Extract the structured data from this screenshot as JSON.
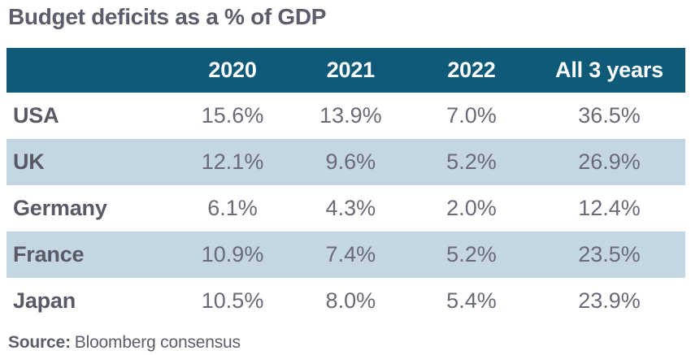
{
  "title": "Budget deficits as a % of GDP",
  "table": {
    "columns": [
      "",
      "2020",
      "2021",
      "2022",
      "All 3 years"
    ],
    "rows": [
      {
        "label": "USA",
        "values": [
          "15.6%",
          "13.9%",
          "7.0%",
          "36.5%"
        ]
      },
      {
        "label": "UK",
        "values": [
          "12.1%",
          "9.6%",
          "5.2%",
          "26.9%"
        ]
      },
      {
        "label": "Germany",
        "values": [
          "6.1%",
          "4.3%",
          "2.0%",
          "12.4%"
        ]
      },
      {
        "label": "France",
        "values": [
          "10.9%",
          "7.4%",
          "5.2%",
          "23.5%"
        ]
      },
      {
        "label": "Japan",
        "values": [
          "10.5%",
          "8.0%",
          "5.4%",
          "23.9%"
        ]
      }
    ]
  },
  "source": {
    "label": "Source:",
    "text": "Bloomberg consensus"
  },
  "colors": {
    "header_bg": "#0e5a78",
    "header_text": "#ffffff",
    "alt_row_bg": "#c5d6e3",
    "title_text": "#5b5d6a",
    "body_text": "#696b76",
    "row_label_text": "#585a66"
  },
  "chart_data": {
    "type": "table",
    "title": "Budget deficits as a % of GDP",
    "columns": [
      "2020",
      "2021",
      "2022",
      "All 3 years"
    ],
    "row_labels": [
      "USA",
      "UK",
      "Germany",
      "France",
      "Japan"
    ],
    "values_pct": [
      [
        15.6,
        13.9,
        7.0,
        36.5
      ],
      [
        12.1,
        9.6,
        5.2,
        26.9
      ],
      [
        6.1,
        4.3,
        2.0,
        12.4
      ],
      [
        10.9,
        7.4,
        5.2,
        23.5
      ],
      [
        10.5,
        8.0,
        5.4,
        23.9
      ]
    ],
    "source": "Bloomberg consensus"
  }
}
